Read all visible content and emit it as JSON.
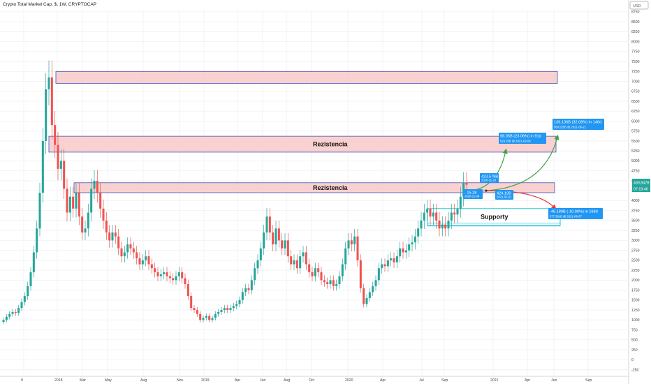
{
  "header": {
    "title": "Crypto Total Market Cap, $, 1W, CRYPTOCAP"
  },
  "price_axis": {
    "currency": "USD",
    "last_value": "439.847B",
    "countdown": "07:19:46",
    "last_value_color": "#26a69a"
  },
  "colors": {
    "up": "#26a69a",
    "down": "#ef5350",
    "zone_fill": "#f8c9c9",
    "zone_border": "#3f51b5",
    "support_fill": "#ffffff",
    "support_border": "#00bcd4",
    "label_bg": "#2196f3"
  },
  "zones": [
    {
      "name": "top-resistance",
      "label": ""
    },
    {
      "name": "resistance-1",
      "label": "Rezistencia"
    },
    {
      "name": "resistance-2",
      "label": "Rezistencia"
    },
    {
      "name": "support",
      "label": "Supporty"
    }
  ],
  "annotations": {
    "current_price": "423.579B",
    "current_date": "2020-11-23",
    "short_change": "- 15.28",
    "short_date": "2020-11-09",
    "mid_price": "424.19B",
    "mid_date": "2021-02-01",
    "target1_change": "98.05B (23.06%) in 91d",
    "target1_detail": "523.25B @ 2021-02-08",
    "target2_change": "136.136B (32.08%) in 140d",
    "target2_detail": "560.525B @ 2021-06-21",
    "down_change": "-46.189B (-10.90%) in 168d",
    "down_detail": "377.391B @ 2021-06-07"
  },
  "chart_data": {
    "type": "candlestick",
    "title": "Crypto Total Market Cap, $, 1W, CRYPTOCAP",
    "ylabel": "USD",
    "y_ticks": [
      "-250",
      "0",
      "250",
      "500",
      "750",
      "1000",
      "1250",
      "1500",
      "1750",
      "2000",
      "2250",
      "2500",
      "2750",
      "3000",
      "3250",
      "3500",
      "3750",
      "4000",
      "4250",
      "4500",
      "4750",
      "5000",
      "5250",
      "5500",
      "5750",
      "6000",
      "6250",
      "6500",
      "6750",
      "7000",
      "7250",
      "7500",
      "7750",
      "8000",
      "8250",
      "8500",
      "8750"
    ],
    "x_ticks": [
      "9",
      "2018",
      "Mar",
      "May",
      "Aug",
      "Nov",
      "2019",
      "Apr",
      "Jun",
      "Aug",
      "Oct",
      "2020",
      "Apr",
      "Jul",
      "Sep",
      "2021",
      "Apr",
      "Jun",
      "Sep"
    ],
    "ylim": [
      -400,
      8800
    ],
    "closes": [
      1000,
      1080,
      1150,
      1200,
      1180,
      1300,
      1450,
      1600,
      1850,
      2200,
      2700,
      3300,
      4200,
      5500,
      6800,
      7100,
      5900,
      5400,
      4800,
      5000,
      4300,
      3700,
      4100,
      3800,
      4200,
      3600,
      3200,
      3300,
      3700,
      4300,
      4500,
      4200,
      3800,
      3500,
      3200,
      3000,
      3200,
      3100,
      2800,
      2600,
      2700,
      2900,
      2800,
      2700,
      2550,
      2400,
      2500,
      2600,
      2400,
      2300,
      2200,
      2100,
      2150,
      2200,
      2100,
      2050,
      2000,
      2100,
      2200,
      2050,
      1900,
      1600,
      1300,
      1250,
      1150,
      1000,
      1050,
      1100,
      1000,
      1050,
      1150,
      1200,
      1250,
      1300,
      1250,
      1300,
      1350,
      1400,
      1500,
      1700,
      1800,
      1750,
      2000,
      2300,
      2500,
      2800,
      3200,
      3600,
      3200,
      2900,
      3300,
      3000,
      2800,
      3000,
      2600,
      2400,
      2500,
      2300,
      2600,
      2700,
      2400,
      2200,
      2100,
      2300,
      2200,
      2000,
      1950,
      1900,
      2000,
      1850,
      1900,
      2100,
      2400,
      2800,
      3000,
      2900,
      3100,
      2500,
      1800,
      1400,
      1550,
      1700,
      1850,
      2000,
      2300,
      2400,
      2350,
      2500,
      2550,
      2450,
      2600,
      2800,
      2700,
      2750,
      2900,
      2950,
      3100,
      3300,
      3500,
      3700,
      3800,
      3600,
      3700,
      3500,
      3300,
      3400,
      3300,
      3500,
      3700,
      3650,
      3800,
      4100,
      4450,
      4400
    ]
  }
}
